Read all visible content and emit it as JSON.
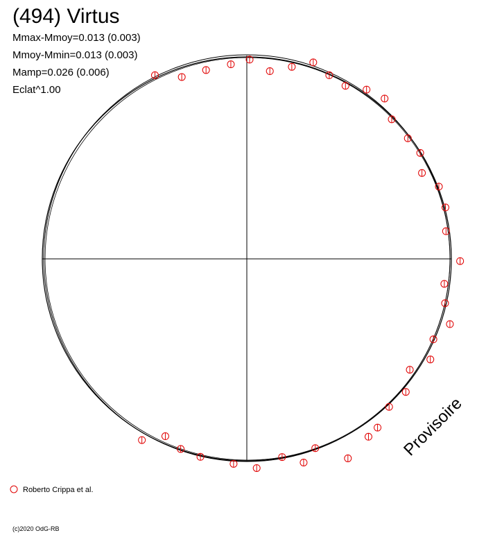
{
  "chart_data": {
    "type": "polar",
    "title": "(494) Virtus",
    "annotations": [
      "Mmax-Mmoy=0.013 (0.003)",
      "Mmoy-Mmin=0.013 (0.003)",
      "Mamp=0.026 (0.006)",
      "Eclat^1.00"
    ],
    "watermark": "Provisoire",
    "credit": "(c)2020 OdG-RB",
    "series": [
      {
        "name": "Roberto Crippa et al.",
        "color": "#e00000",
        "x": [
          333.4,
          340.3,
          347.8,
          355.3,
          0.8,
          7.0,
          13.2,
          18.7,
          24.2,
          29.7,
          35.3,
          40.7,
          46.1,
          53.2,
          58.6,
          63.9,
          69.4,
          75.5,
          82.1,
          90.6,
          97.2,
          102.6,
          107.8,
          113.3,
          118.7,
          124.2,
          129.9,
          136.1,
          142.2,
          145.6,
          153.1,
          160.1,
          164.4,
          169.9,
          177.3,
          183.7,
          193.2,
          199.2,
          204.7,
          210.1
        ],
        "values": [
          1.01,
          0.95,
          0.95,
          0.96,
          0.98,
          0.93,
          0.97,
          1.02,
          0.99,
          0.98,
          1.02,
          1.04,
          0.99,
          0.99,
          1.0,
          0.96,
          1.01,
          1.01,
          0.99,
          1.05,
          0.98,
          1.0,
          1.05,
          1.0,
          1.03,
          0.97,
          1.02,
          1.01,
          1.05,
          1.06,
          1.1,
          0.99,
          1.04,
          0.99,
          1.03,
          1.01,
          1.0,
          0.99,
          0.96,
          1.03
        ]
      }
    ]
  }
}
